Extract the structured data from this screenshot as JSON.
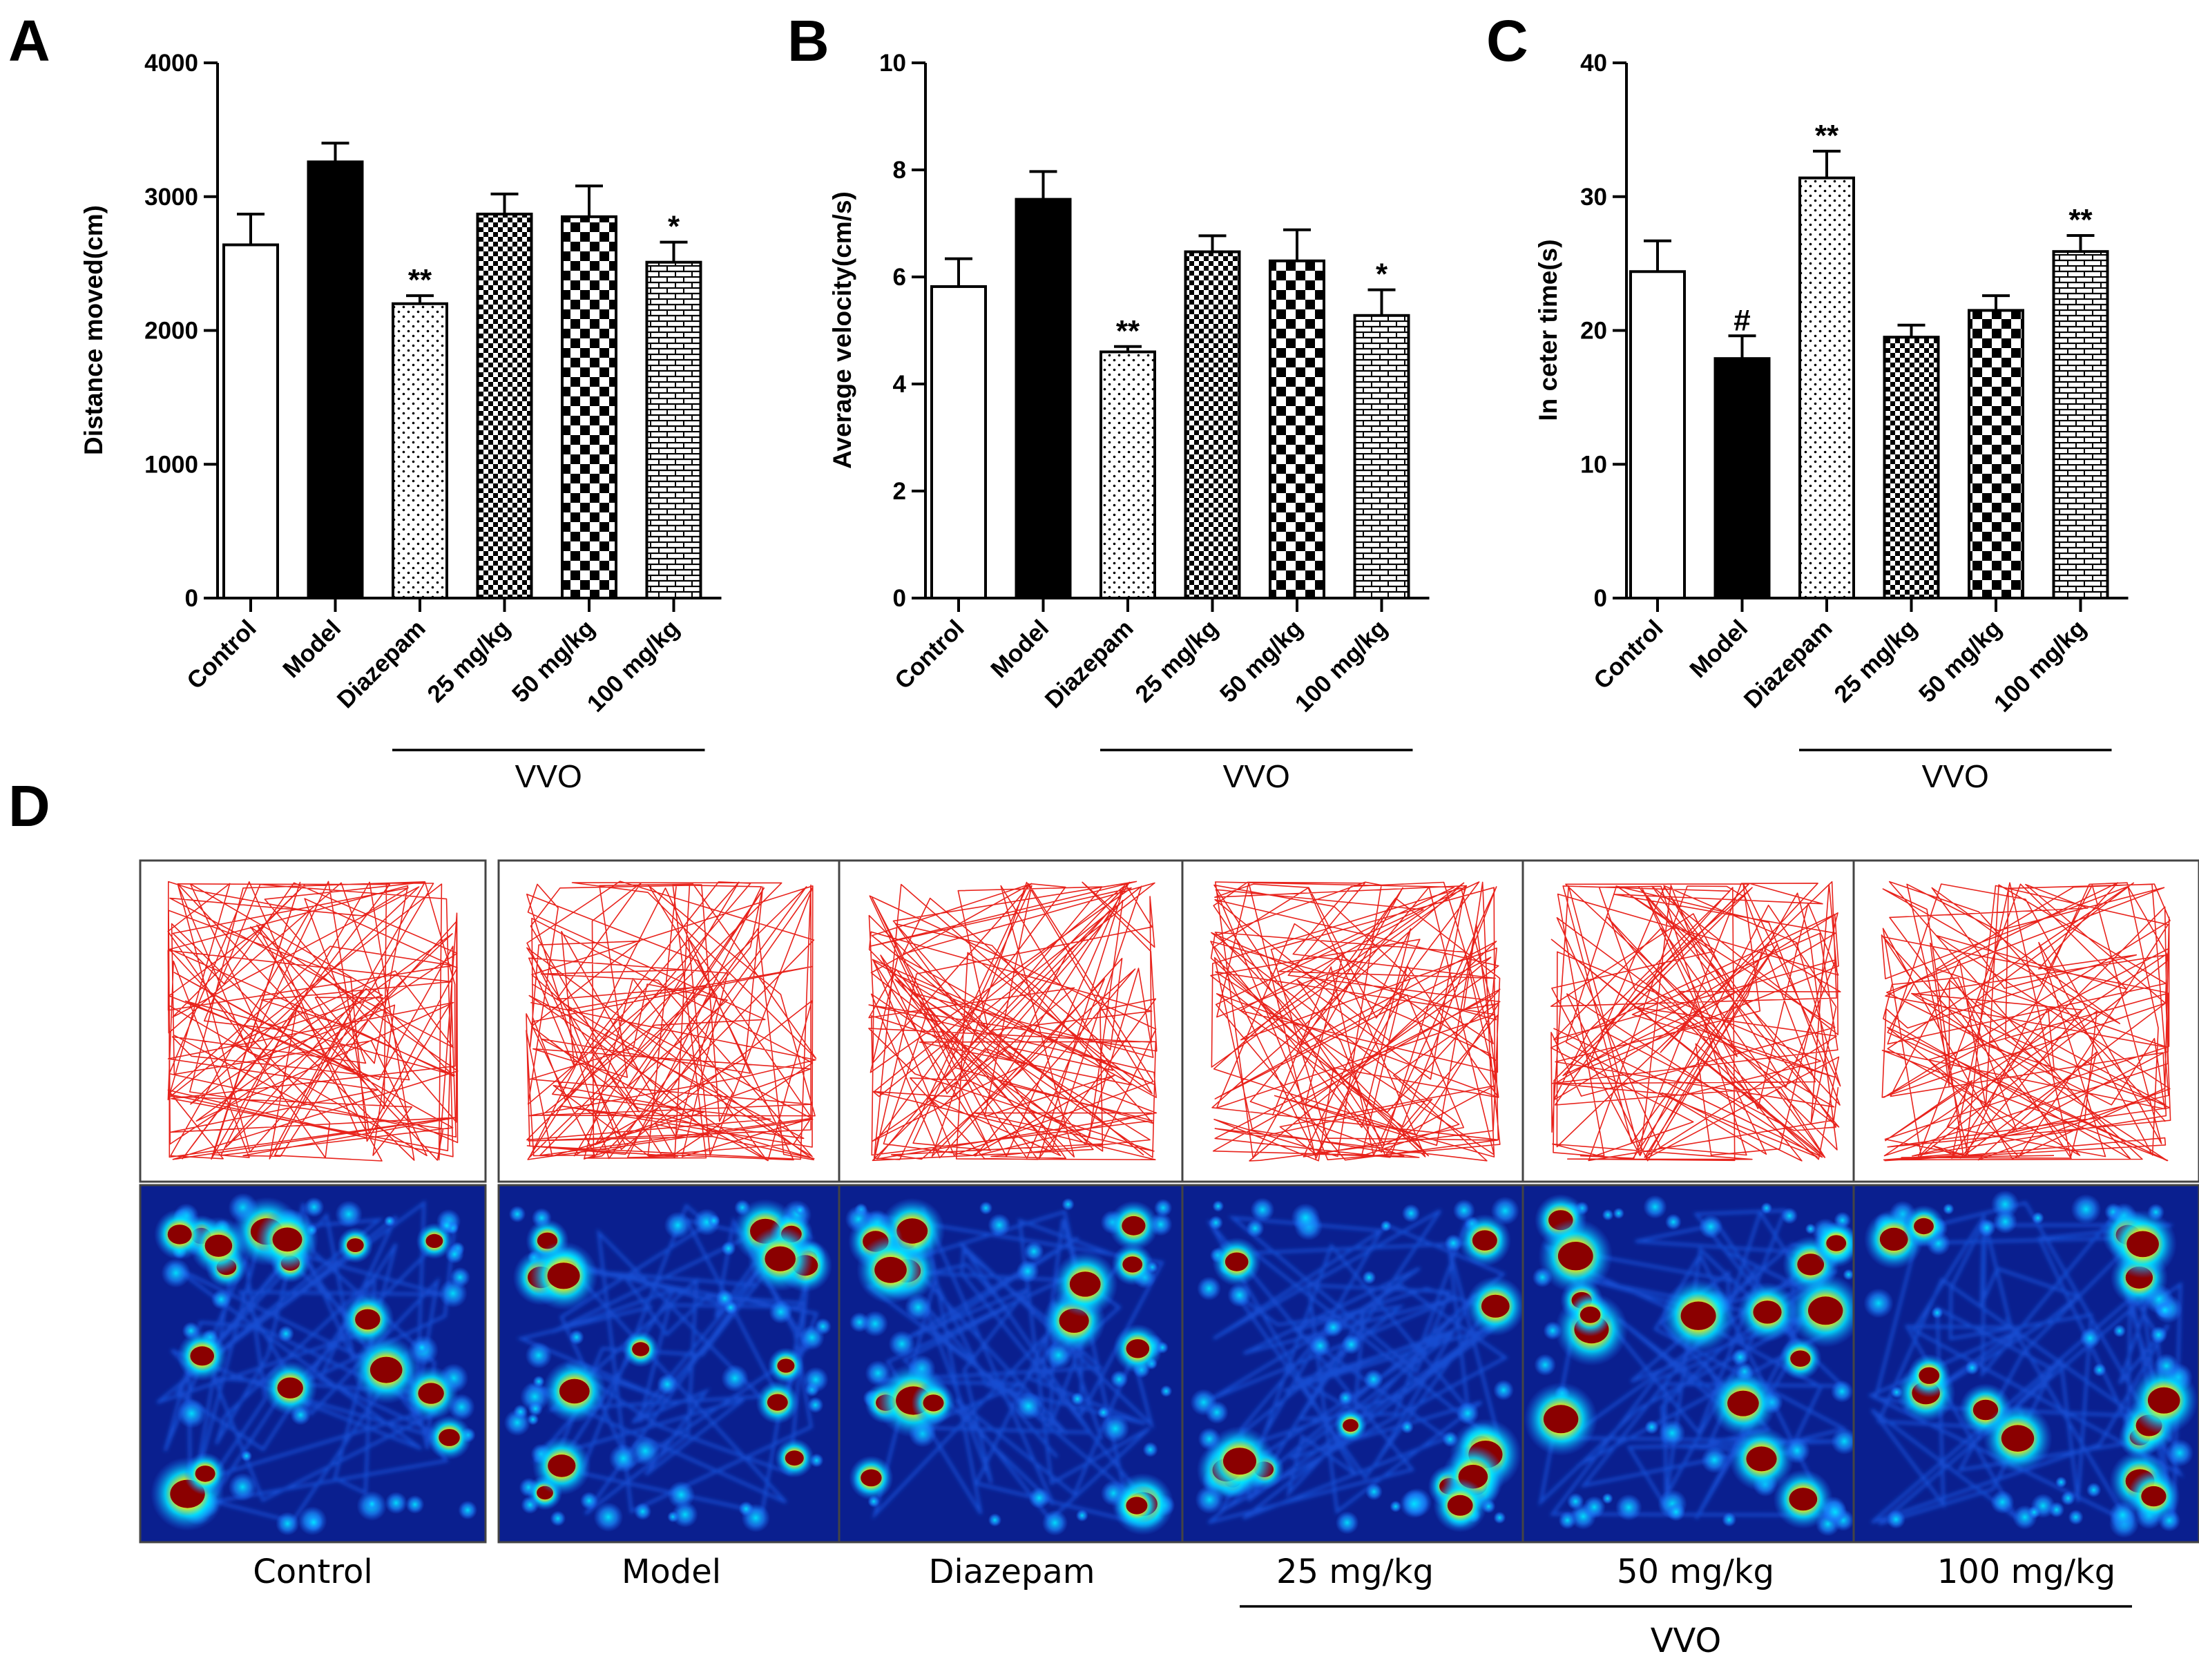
{
  "panels": {
    "A": "A",
    "B": "B",
    "C": "C",
    "D": "D"
  },
  "group_label": "VVO",
  "chart_data": [
    {
      "type": "bar",
      "panel": "A",
      "categories": [
        "Control",
        "Model",
        "Diazepam",
        "25 mg/kg",
        "50 mg/kg",
        "100 mg/kg"
      ],
      "values": [
        2640,
        3260,
        2200,
        2870,
        2850,
        2510
      ],
      "errors": [
        230,
        140,
        60,
        150,
        230,
        150
      ],
      "significance": [
        "",
        "",
        "**",
        "",
        "",
        "*"
      ],
      "fills": [
        "white",
        "black",
        "dots",
        "checker-small",
        "checker-large",
        "bricks"
      ],
      "ylabel": "Distance moved(cm)",
      "ylim": [
        0,
        4000
      ],
      "yticks": [
        0,
        1000,
        2000,
        3000,
        4000
      ],
      "group_label": "VVO",
      "group_span": [
        "Diazepam",
        "100 mg/kg"
      ]
    },
    {
      "type": "bar",
      "panel": "B",
      "categories": [
        "Control",
        "Model",
        "Diazepam",
        "25 mg/kg",
        "50 mg/kg",
        "100 mg/kg"
      ],
      "values": [
        5.82,
        7.45,
        4.6,
        6.47,
        6.3,
        5.28
      ],
      "errors": [
        0.52,
        0.52,
        0.1,
        0.3,
        0.58,
        0.48
      ],
      "significance": [
        "",
        "",
        "**",
        "",
        "",
        "*"
      ],
      "fills": [
        "white",
        "black",
        "dots",
        "checker-small",
        "checker-large",
        "bricks"
      ],
      "ylabel": "Average velocity(cm/s)",
      "ylim": [
        0,
        10
      ],
      "yticks": [
        0,
        2,
        4,
        6,
        8,
        10
      ],
      "group_label": "VVO",
      "group_span": [
        "Diazepam",
        "100 mg/kg"
      ]
    },
    {
      "type": "bar",
      "panel": "C",
      "categories": [
        "Control",
        "Model",
        "Diazepam",
        "25 mg/kg",
        "50 mg/kg",
        "100 mg/kg"
      ],
      "values": [
        24.4,
        17.9,
        31.4,
        19.5,
        21.5,
        25.9
      ],
      "errors": [
        2.3,
        1.7,
        2.0,
        0.9,
        1.1,
        1.2
      ],
      "significance": [
        "",
        "#",
        "**",
        "",
        "",
        "**"
      ],
      "fills": [
        "white",
        "black",
        "dots",
        "checker-small",
        "checker-large",
        "bricks"
      ],
      "ylabel": "In ceter time(s)",
      "ylim": [
        0,
        40
      ],
      "yticks": [
        0,
        10,
        20,
        30,
        40
      ],
      "group_label": "VVO",
      "group_span": [
        "Diazepam",
        "100 mg/kg"
      ]
    }
  ],
  "panel_d": {
    "labels": [
      "Control",
      "Model",
      "Diazepam",
      "25 mg/kg",
      "50 mg/kg",
      "100 mg/kg"
    ],
    "group_label": "VVO",
    "track_color": "#e8231c",
    "heat_colors": {
      "background": "#0a1f8f",
      "low": "#1a6cff",
      "mid": "#00e5ff",
      "high": "#ffee00",
      "hot": "#ff5a00",
      "peak": "#8b0000"
    }
  }
}
